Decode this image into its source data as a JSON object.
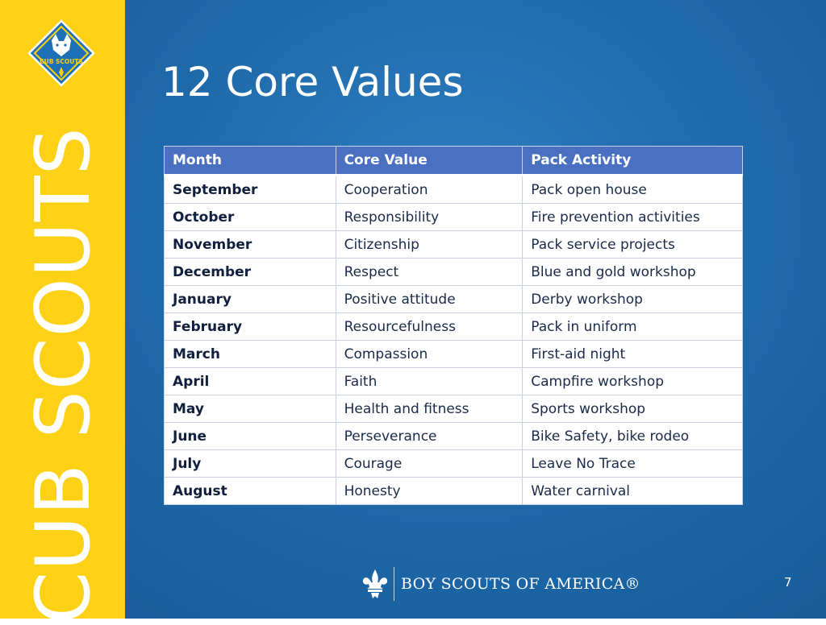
{
  "sidebar": {
    "brand": "CUB SCOUTS",
    "logo_text": "CUB SCOUTS",
    "color": "#fcd116"
  },
  "title": "12 Core Values",
  "table": {
    "headers": [
      "Month",
      "Core Value",
      "Pack Activity"
    ],
    "rows": [
      [
        "September",
        "Cooperation",
        "Pack open house"
      ],
      [
        "October",
        "Responsibility",
        "Fire prevention activities"
      ],
      [
        "November",
        "Citizenship",
        "Pack service projects"
      ],
      [
        "December",
        "Respect",
        "Blue and gold workshop"
      ],
      [
        "January",
        "Positive attitude",
        "Derby workshop"
      ],
      [
        "February",
        "Resourcefulness",
        "Pack in uniform"
      ],
      [
        "March",
        "Compassion",
        "First-aid night"
      ],
      [
        "April",
        "Faith",
        "Campfire workshop"
      ],
      [
        "May",
        "Health and fitness",
        "Sports workshop"
      ],
      [
        "June",
        "Perseverance",
        "Bike Safety, bike rodeo"
      ],
      [
        "July",
        "Courage",
        "Leave No Trace"
      ],
      [
        "August",
        "Honesty",
        "Water carnival"
      ]
    ],
    "header_color": "#4a70c2"
  },
  "footer": {
    "org": "BOY SCOUTS OF AMERICA®",
    "icon": "fleur-de-lis-icon"
  },
  "page_number": "7",
  "background_color": "#1f6aab"
}
